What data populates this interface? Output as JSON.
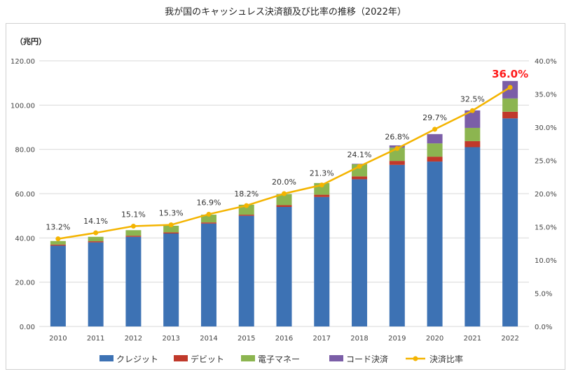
{
  "title": "我が国のキャッシュレス決済額及び比率の推移（2022年）",
  "chart_data": {
    "type": "bar",
    "stacked": true,
    "y_unit_label": "（兆円）",
    "categories": [
      "2010",
      "2011",
      "2012",
      "2013",
      "2014",
      "2015",
      "2016",
      "2017",
      "2018",
      "2019",
      "2020",
      "2021",
      "2022"
    ],
    "ylim": [
      0,
      120
    ],
    "yticks": [
      "0.00",
      "20.00",
      "40.00",
      "60.00",
      "80.00",
      "100.00",
      "120.00"
    ],
    "y2lim": [
      0,
      40
    ],
    "y2ticks": [
      "0.0%",
      "5.0%",
      "10.0%",
      "15.0%",
      "20.0%",
      "25.0%",
      "30.0%",
      "35.0%",
      "40.0%"
    ],
    "grid": true,
    "legend_position": "bottom",
    "series": [
      {
        "name": "クレジット",
        "kind": "bar",
        "color": "#3d72b4",
        "values": [
          36.5,
          38.0,
          40.5,
          42.0,
          46.5,
          50.0,
          54.0,
          58.5,
          66.5,
          73.0,
          74.5,
          81.0,
          94.0
        ]
      },
      {
        "name": "デビット",
        "kind": "bar",
        "color": "#c0392b",
        "values": [
          0.5,
          0.5,
          0.5,
          0.5,
          0.5,
          0.5,
          0.8,
          1.0,
          1.3,
          1.8,
          2.2,
          2.7,
          3.0
        ]
      },
      {
        "name": "電子マネー",
        "kind": "bar",
        "color": "#8cb550",
        "values": [
          1.6,
          2.0,
          2.5,
          3.0,
          3.5,
          4.5,
          5.0,
          5.3,
          5.5,
          6.0,
          6.0,
          6.0,
          6.0
        ]
      },
      {
        "name": "コード決済",
        "kind": "bar",
        "color": "#7b5ea7",
        "values": [
          0,
          0,
          0,
          0,
          0,
          0,
          0,
          0,
          0.2,
          1.0,
          4.2,
          7.9,
          7.9
        ]
      },
      {
        "name": "決済比率",
        "kind": "line",
        "axis": "right",
        "color": "#f4b400",
        "values": [
          13.2,
          14.1,
          15.1,
          15.3,
          16.9,
          18.2,
          20.0,
          21.3,
          24.1,
          26.8,
          29.7,
          32.5,
          36.0
        ],
        "labels": [
          "13.2%",
          "14.1%",
          "15.1%",
          "15.3%",
          "16.9%",
          "18.2%",
          "20.0%",
          "21.3%",
          "24.1%",
          "26.8%",
          "29.7%",
          "32.5%",
          "36.0%"
        ],
        "highlight_index": 12,
        "highlight_color": "#ff1a1a"
      }
    ]
  }
}
